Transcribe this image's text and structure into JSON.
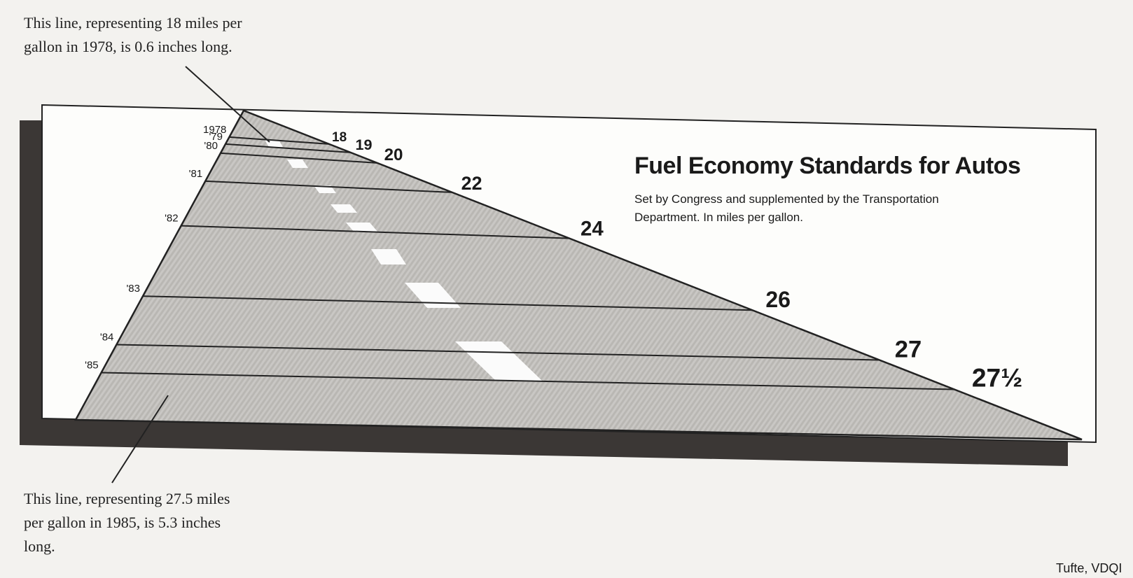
{
  "chart_data": {
    "type": "road",
    "title": "Fuel Economy Standards for Autos",
    "subtitle": "Set by Congress and supplemented by the Transportation Department. In miles per gallon.",
    "categories": [
      "1978",
      "'79",
      "'80",
      "'81",
      "'82",
      "'83",
      "'84",
      "'85"
    ],
    "values": [
      18,
      19,
      20,
      22,
      24,
      26,
      27,
      27.5
    ],
    "value_labels": [
      "18",
      "19",
      "20",
      "22",
      "24",
      "26",
      "27",
      "27½"
    ],
    "annotations": [
      "This line, representing 18 miles per gallon in 1978, is 0.6 inches long.",
      "This line, representing 27.5 miles per gallon in 1985, is 5.3 inches long."
    ],
    "source": "Tufte, VDQI"
  }
}
